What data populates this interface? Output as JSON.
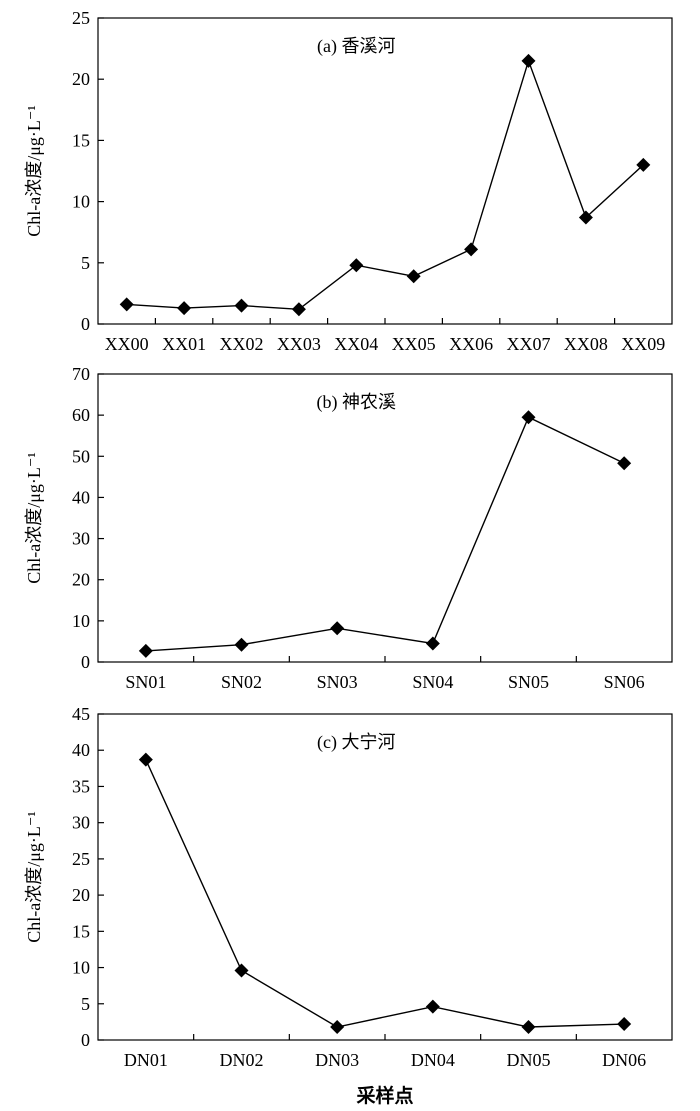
{
  "figure": {
    "xlabel": "采样点"
  },
  "chart_data": [
    {
      "type": "line",
      "title": "(a)  香溪河",
      "ylabel": "Chl-a浓度/μg·L⁻¹",
      "xlabel": "",
      "ylim": [
        0,
        25
      ],
      "yticks": [
        0,
        5,
        10,
        15,
        20,
        25
      ],
      "yticklabels": [
        "0",
        "5",
        "10",
        "15",
        "20",
        "25"
      ],
      "categories": [
        "XX00",
        "XX01",
        "XX02",
        "XX03",
        "XX04",
        "XX05",
        "XX06",
        "XX07",
        "XX08",
        "XX09"
      ],
      "values": [
        1.6,
        1.3,
        1.5,
        1.2,
        4.8,
        3.9,
        6.1,
        21.5,
        8.7,
        13.0
      ],
      "marker": "diamond",
      "line_color": "#000000",
      "grid": false,
      "legend": "none"
    },
    {
      "type": "line",
      "title": "(b)  神农溪",
      "ylabel": "Chl-a浓度/μg·L⁻¹",
      "xlabel": "",
      "ylim": [
        0,
        70
      ],
      "yticks": [
        0,
        10,
        20,
        30,
        40,
        50,
        60,
        70
      ],
      "yticklabels": [
        "0",
        "10",
        "20",
        "30",
        "40",
        "50",
        "60",
        "70"
      ],
      "categories": [
        "SN01",
        "SN02",
        "SN03",
        "SN04",
        "SN05",
        "SN06"
      ],
      "values": [
        2.7,
        4.2,
        8.2,
        4.5,
        59.5,
        48.3
      ],
      "marker": "diamond",
      "line_color": "#000000",
      "grid": false,
      "legend": "none"
    },
    {
      "type": "line",
      "title": "(c)  大宁河",
      "ylabel": "Chl-a浓度/μg·L⁻¹",
      "xlabel": "采样点",
      "ylim": [
        0,
        45
      ],
      "yticks": [
        0,
        5,
        10,
        15,
        20,
        25,
        30,
        35,
        40,
        45
      ],
      "yticklabels": [
        "0",
        "5",
        "10",
        "15",
        "20",
        "25",
        "30",
        "35",
        "40",
        "45"
      ],
      "categories": [
        "DN01",
        "DN02",
        "DN03",
        "DN04",
        "DN05",
        "DN06"
      ],
      "values": [
        38.7,
        9.6,
        1.8,
        4.6,
        1.8,
        2.2
      ],
      "marker": "diamond",
      "line_color": "#000000",
      "grid": false,
      "legend": "none"
    }
  ]
}
